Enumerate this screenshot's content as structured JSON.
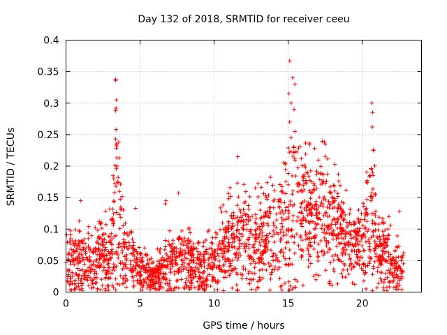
{
  "chart_data": {
    "type": "scatter",
    "title": "Day 132 of 2018, SRMTID for receiver ceeu",
    "xlabel": "GPS time / hours",
    "ylabel": "SRMTID / TECUs",
    "xlim": [
      0,
      24
    ],
    "ylim": [
      0,
      0.4
    ],
    "x_ticks": [
      0,
      5,
      10,
      15,
      20
    ],
    "x_tick_labels": [
      "0",
      "5",
      "10",
      "15",
      "20"
    ],
    "y_ticks": [
      0,
      0.05,
      0.1,
      0.15,
      0.2,
      0.25,
      0.3,
      0.35,
      0.4
    ],
    "y_tick_labels": [
      "0",
      "0.05",
      "0.1",
      "0.15",
      "0.2",
      "0.25",
      "0.3",
      "0.35",
      "0.4"
    ],
    "grid": true,
    "marker": "plus",
    "series": [
      {
        "name": "SRMTID",
        "color": "#ff0000",
        "x_range": [
          0,
          22.8
        ],
        "envelope": [
          [
            0,
            0.045,
            0.035
          ],
          [
            1,
            0.05,
            0.035
          ],
          [
            2,
            0.05,
            0.035
          ],
          [
            3,
            0.07,
            0.045
          ],
          [
            3.4,
            0.12,
            0.1
          ],
          [
            4,
            0.065,
            0.04
          ],
          [
            5,
            0.035,
            0.025
          ],
          [
            6,
            0.028,
            0.022
          ],
          [
            7,
            0.045,
            0.03
          ],
          [
            8,
            0.05,
            0.035
          ],
          [
            9,
            0.04,
            0.03
          ],
          [
            10,
            0.05,
            0.035
          ],
          [
            11,
            0.08,
            0.05
          ],
          [
            12,
            0.085,
            0.05
          ],
          [
            13,
            0.08,
            0.05
          ],
          [
            14,
            0.085,
            0.05
          ],
          [
            15,
            0.12,
            0.08
          ],
          [
            15.5,
            0.14,
            0.09
          ],
          [
            16,
            0.13,
            0.07
          ],
          [
            17,
            0.12,
            0.06
          ],
          [
            18,
            0.11,
            0.05
          ],
          [
            19,
            0.09,
            0.04
          ],
          [
            20,
            0.075,
            0.035
          ],
          [
            20.7,
            0.12,
            0.09
          ],
          [
            21,
            0.07,
            0.04
          ],
          [
            22,
            0.045,
            0.03
          ],
          [
            22.8,
            0.035,
            0.025
          ]
        ],
        "spikes": [
          [
            3.35,
            0.338
          ],
          [
            3.35,
            0.336
          ],
          [
            3.4,
            0.305
          ],
          [
            3.38,
            0.292
          ],
          [
            3.35,
            0.288
          ],
          [
            3.38,
            0.258
          ],
          [
            3.35,
            0.243
          ],
          [
            3.38,
            0.235
          ],
          [
            3.45,
            0.2
          ],
          [
            3.5,
            0.175
          ],
          [
            15.1,
            0.367
          ],
          [
            15.3,
            0.34
          ],
          [
            15.45,
            0.33
          ],
          [
            15.05,
            0.315
          ],
          [
            15.2,
            0.3
          ],
          [
            15.4,
            0.29
          ],
          [
            15.1,
            0.27
          ],
          [
            15.45,
            0.255
          ],
          [
            15.2,
            0.245
          ],
          [
            17.45,
            0.238
          ],
          [
            17.5,
            0.235
          ],
          [
            11.6,
            0.215
          ],
          [
            20.65,
            0.3
          ],
          [
            20.7,
            0.285
          ],
          [
            20.68,
            0.262
          ],
          [
            20.75,
            0.225
          ],
          [
            20.7,
            0.19
          ],
          [
            7.6,
            0.157
          ],
          [
            6.75,
            0.145
          ],
          [
            6.7,
            0.14
          ],
          [
            1.0,
            0.145
          ],
          [
            4.7,
            0.133
          ],
          [
            22.5,
            0.128
          ],
          [
            21.8,
            0.12
          ]
        ]
      }
    ]
  }
}
